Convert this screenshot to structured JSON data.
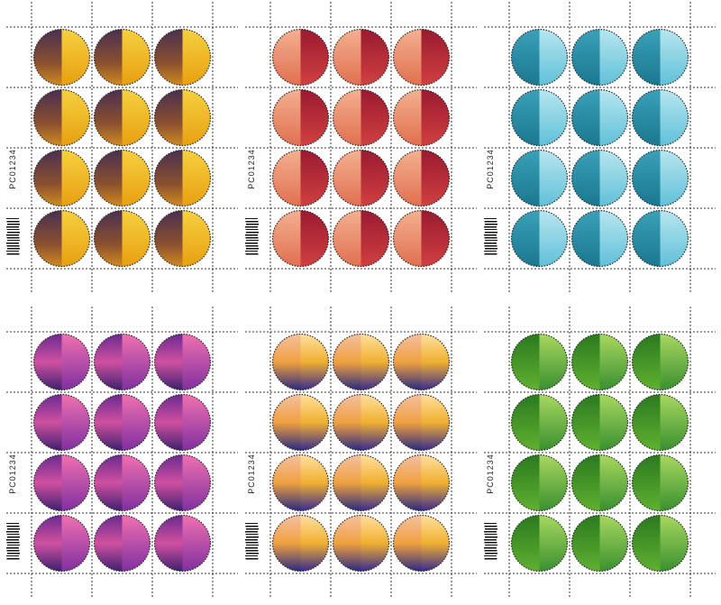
{
  "sheets": [
    {
      "control_number": "PC01234"
    },
    {
      "control_number": "PC01234"
    },
    {
      "control_number": "PC01234"
    },
    {
      "control_number": "PC01234"
    },
    {
      "control_number": "PC01234"
    },
    {
      "control_number": "PC01234"
    }
  ]
}
